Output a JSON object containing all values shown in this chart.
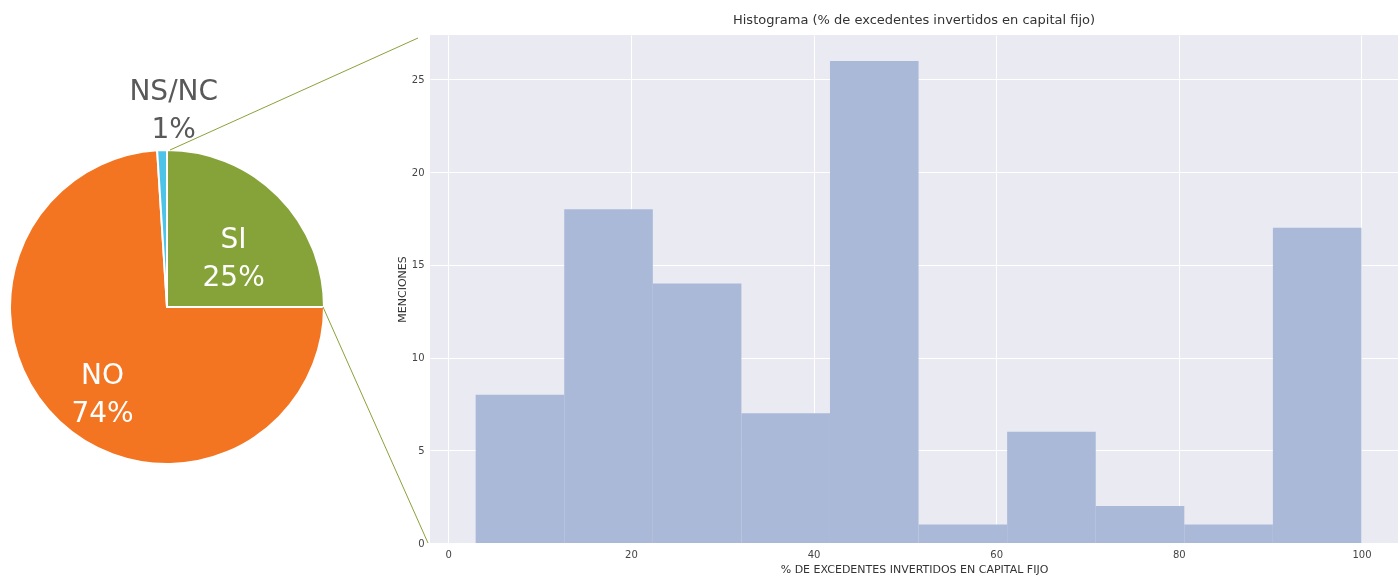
{
  "chart_data": [
    {
      "type": "pie",
      "categories": [
        "SI",
        "NO",
        "NS/NC"
      ],
      "values": [
        25,
        74,
        1
      ],
      "colors": [
        "#86a33a",
        "#f47521",
        "#4dc3e8"
      ],
      "value_labels": [
        "25%",
        "74%",
        "1%"
      ]
    },
    {
      "type": "histogram",
      "title": "Histograma (% de excedentes invertidos en capital fijo)",
      "xlabel": "% DE EXCEDENTES INVERTIDOS EN CAPITAL FIJO",
      "ylabel": "MENCIONES",
      "bins": [
        3,
        12.7,
        22.4,
        32.1,
        41.8,
        51.5,
        61.2,
        70.9,
        80.6,
        90.3,
        100
      ],
      "values": [
        8,
        18,
        14,
        7,
        26,
        1,
        6,
        2,
        1,
        17
      ],
      "color": "#aab9d8",
      "xlim": [
        -2,
        104
      ],
      "xticks": [
        0,
        20,
        40,
        60,
        80,
        100
      ],
      "ylim": [
        0,
        27.4
      ],
      "yticks": [
        0,
        5,
        10,
        15,
        20,
        25
      ],
      "grid": true
    }
  ]
}
